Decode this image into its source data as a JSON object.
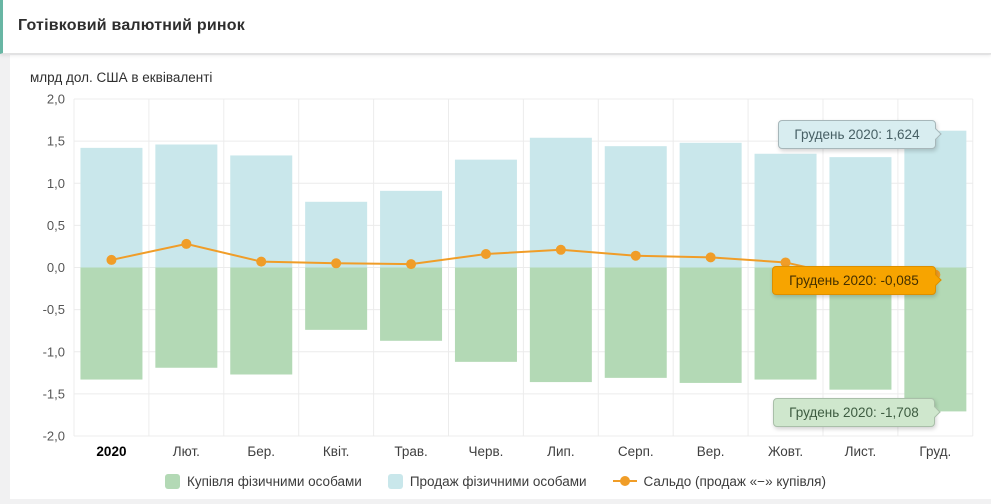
{
  "header": {
    "title": "Готівковий валютний ринок"
  },
  "chart_data": {
    "type": "bar",
    "title": "Готівковий валютний ринок",
    "subtitle": "млрд дол. США в еквіваленті",
    "xlabel": "",
    "ylabel": "млрд дол. США в еквіваленті",
    "ylim": [
      -2.0,
      2.0
    ],
    "grid": true,
    "legend_position": "bottom",
    "categories": [
      "2020",
      "Лют.",
      "Бер.",
      "Квіт.",
      "Трав.",
      "Черв.",
      "Лип.",
      "Серп.",
      "Вер.",
      "Жовт.",
      "Лист.",
      "Груд."
    ],
    "yticks": [
      "2,0",
      "1,5",
      "1,0",
      "0,5",
      "0,0",
      "-0,5",
      "-1,0",
      "-1,5",
      "-2,0"
    ],
    "ytick_values": [
      2.0,
      1.5,
      1.0,
      0.5,
      0.0,
      -0.5,
      -1.0,
      -1.5,
      -2.0
    ],
    "series": [
      {
        "name": "Купівля фізичними особами",
        "type": "bar",
        "color": "#b3d9b5",
        "values": [
          -1.33,
          -1.19,
          -1.27,
          -0.74,
          -0.87,
          -1.12,
          -1.36,
          -1.31,
          -1.37,
          -1.33,
          -1.45,
          -1.708
        ]
      },
      {
        "name": "Продаж фізичними особами",
        "type": "bar",
        "color": "#c9e7eb",
        "values": [
          1.42,
          1.46,
          1.33,
          0.78,
          0.91,
          1.28,
          1.54,
          1.44,
          1.48,
          1.35,
          1.31,
          1.624
        ]
      },
      {
        "name": "Сальдо (продаж «−» купівля)",
        "type": "line",
        "color": "#f09d28",
        "values": [
          0.09,
          0.28,
          0.07,
          0.05,
          0.04,
          0.16,
          0.21,
          0.14,
          0.12,
          0.06,
          -0.14,
          -0.085
        ]
      }
    ]
  },
  "tooltips": [
    {
      "series": "Продаж фізичними особами",
      "text": "Грудень 2020: 1,624"
    },
    {
      "series": "Сальдо",
      "text": "Грудень 2020: -0,085"
    },
    {
      "series": "Купівля фізичними особами",
      "text": "Грудень 2020: -1,708"
    }
  ],
  "colors": {
    "accent_teal": "#68b6a4",
    "buy_bar": "#b3d9b5",
    "sell_bar": "#c9e7eb",
    "saldo_line": "#f09d28",
    "tooltip_orange_bg": "#f7a400",
    "tooltip_blue_bg": "#d8edf0",
    "tooltip_green_bg": "#cfe7cd",
    "gridline": "#ececec"
  }
}
